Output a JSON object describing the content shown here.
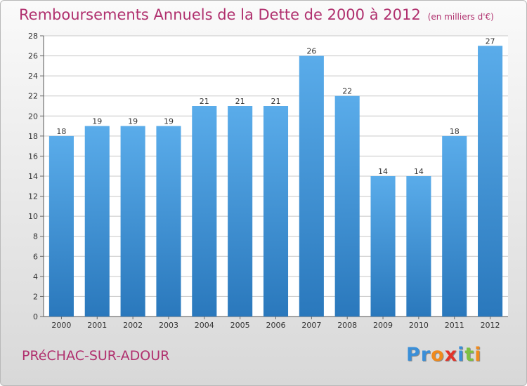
{
  "header": {
    "title": "Remboursements Annuels de la Dette de 2000 à 2012",
    "subtitle": "(en milliers d'€)"
  },
  "footer": {
    "commune": "PRéCHAC-SUR-ADOUR",
    "logo_letters": [
      {
        "ch": "P",
        "color": "#3a8fd8"
      },
      {
        "ch": "r",
        "color": "#3a8fd8"
      },
      {
        "ch": "o",
        "color": "#f08a1c"
      },
      {
        "ch": "x",
        "color": "#e2342a"
      },
      {
        "ch": "i",
        "color": "#3a8fd8"
      },
      {
        "ch": "t",
        "color": "#7cc142"
      },
      {
        "ch": "i",
        "color": "#f08a1c"
      }
    ]
  },
  "colors": {
    "bar_top": "#5aacea",
    "bar_bottom": "#2a78bc",
    "title": "#b0306e",
    "grid": "#c8c8c8",
    "plot_bg": "#ffffff"
  },
  "chart_data": {
    "type": "bar",
    "categories": [
      "2000",
      "2001",
      "2002",
      "2003",
      "2004",
      "2005",
      "2006",
      "2007",
      "2008",
      "2009",
      "2010",
      "2011",
      "2012"
    ],
    "values": [
      18,
      19,
      19,
      19,
      21,
      21,
      21,
      26,
      22,
      14,
      14,
      18,
      27
    ],
    "data_labels": [
      "18",
      "19",
      "19",
      "19",
      "21",
      "21",
      "21",
      "26",
      "22",
      "14",
      "14",
      "18",
      "27"
    ],
    "ylim": [
      0,
      28
    ],
    "yticks": [
      0,
      2,
      4,
      6,
      8,
      10,
      12,
      14,
      16,
      18,
      20,
      22,
      24,
      26,
      28
    ],
    "ytick_labels": [
      "0",
      "2",
      "4",
      "6",
      "8",
      "10",
      "12",
      "14",
      "16",
      "18",
      "20",
      "22",
      "24",
      "26",
      "28"
    ],
    "grid": true,
    "title": "Remboursements Annuels de la Dette de 2000 à 2012",
    "xlabel": "",
    "ylabel": ""
  }
}
